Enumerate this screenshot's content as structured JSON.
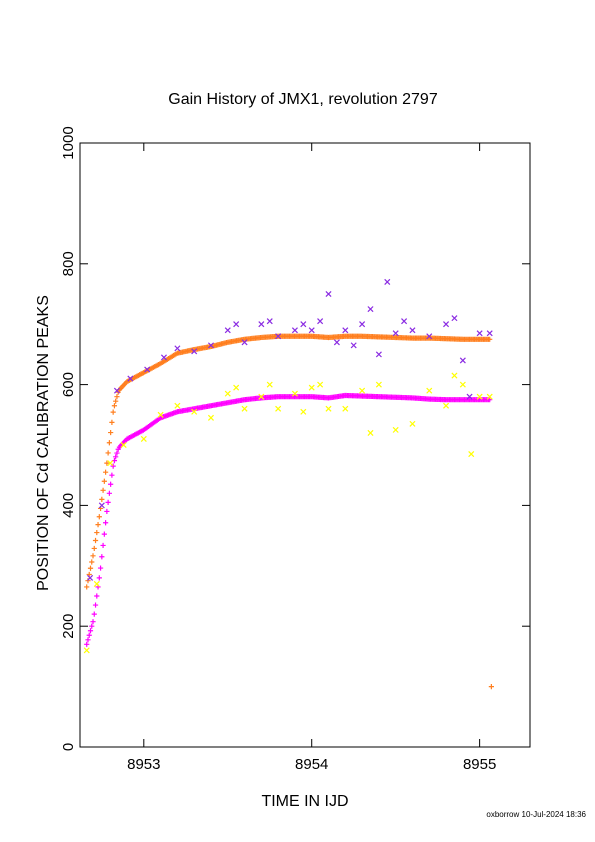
{
  "chart_data": {
    "type": "scatter",
    "title": "Gain History of JMX1, revolution 2797",
    "xlabel": "TIME IN IJD",
    "ylabel": "POSITION OF Cd CALIBRATION PEAKS",
    "xlim": [
      8952.62,
      8955.3
    ],
    "ylim": [
      0,
      1000
    ],
    "x_ticks": [
      "8953",
      "8954",
      "8955"
    ],
    "y_ticks": [
      "0",
      "200",
      "400",
      "600",
      "800",
      "1000"
    ],
    "grid": false,
    "legend": "none",
    "footer": "oxborrow 10-Jul-2024 18:36",
    "series": [
      {
        "color": "#ff7f1f",
        "marker": "+",
        "x": [
          8952.66,
          8952.7,
          8952.74,
          8952.78,
          8952.82,
          8952.85,
          8952.9,
          8953.0,
          8953.1,
          8953.2,
          8953.3,
          8953.4,
          8953.5,
          8953.6,
          8953.7,
          8953.8,
          8953.9,
          8954.0,
          8954.1,
          8954.2,
          8954.3,
          8954.4,
          8954.5,
          8954.6,
          8954.7,
          8954.8,
          8954.9,
          8955.0,
          8955.06
        ],
        "y": [
          265,
          320,
          390,
          470,
          560,
          590,
          605,
          620,
          635,
          652,
          658,
          663,
          670,
          675,
          678,
          680,
          680,
          680,
          678,
          680,
          680,
          679,
          678,
          677,
          677,
          676,
          675,
          675,
          675
        ]
      },
      {
        "color": "#ff00ff",
        "marker": "+",
        "x": [
          8952.66,
          8952.7,
          8952.74,
          8952.78,
          8952.82,
          8952.85,
          8952.9,
          8953.0,
          8953.1,
          8953.2,
          8953.3,
          8953.4,
          8953.5,
          8953.6,
          8953.7,
          8953.8,
          8953.9,
          8954.0,
          8954.1,
          8954.2,
          8954.3,
          8954.4,
          8954.5,
          8954.6,
          8954.7,
          8954.8,
          8954.9,
          8955.0,
          8955.06
        ],
        "y": [
          170,
          210,
          290,
          390,
          470,
          495,
          510,
          525,
          545,
          555,
          560,
          565,
          570,
          575,
          578,
          580,
          580,
          580,
          578,
          582,
          581,
          580,
          579,
          578,
          576,
          575,
          575,
          575,
          575
        ]
      },
      {
        "color": "#8a2be2",
        "marker": "x",
        "x": [
          8952.68,
          8952.75,
          8952.84,
          8952.92,
          8953.02,
          8953.12,
          8953.2,
          8953.3,
          8953.4,
          8953.5,
          8953.55,
          8953.6,
          8953.7,
          8953.75,
          8953.8,
          8953.9,
          8953.95,
          8954.0,
          8954.05,
          8954.1,
          8954.15,
          8954.2,
          8954.25,
          8954.3,
          8954.35,
          8954.4,
          8954.45,
          8954.5,
          8954.55,
          8954.6,
          8954.7,
          8954.8,
          8954.85,
          8954.9,
          8954.94,
          8955.0,
          8955.06
        ],
        "y": [
          280,
          400,
          590,
          610,
          625,
          645,
          660,
          655,
          665,
          690,
          700,
          670,
          700,
          705,
          680,
          690,
          700,
          690,
          705,
          750,
          670,
          690,
          665,
          700,
          725,
          650,
          770,
          685,
          705,
          690,
          680,
          700,
          710,
          640,
          580,
          685,
          685
        ]
      },
      {
        "color": "#ffff00",
        "marker": "x",
        "x": [
          8952.66,
          8952.72,
          8952.8,
          8952.88,
          8953.0,
          8953.1,
          8953.2,
          8953.3,
          8953.4,
          8953.5,
          8953.55,
          8953.6,
          8953.7,
          8953.75,
          8953.8,
          8953.9,
          8953.95,
          8954.0,
          8954.05,
          8954.1,
          8954.2,
          8954.3,
          8954.35,
          8954.4,
          8954.5,
          8954.6,
          8954.7,
          8954.8,
          8954.85,
          8954.9,
          8954.95,
          8955.0,
          8955.06
        ],
        "y": [
          160,
          270,
          470,
          500,
          510,
          550,
          565,
          555,
          545,
          585,
          595,
          560,
          580,
          600,
          560,
          585,
          555,
          595,
          600,
          560,
          560,
          590,
          520,
          600,
          525,
          535,
          590,
          565,
          615,
          600,
          485,
          580,
          580
        ]
      },
      {
        "color": "#ff7f1f",
        "marker": "+",
        "x": [
          8955.07
        ],
        "y": [
          100
        ]
      }
    ]
  }
}
